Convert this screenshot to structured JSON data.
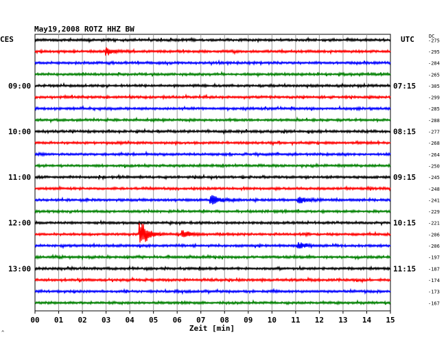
{
  "chart_data": {
    "type": "line",
    "title": "May19,2008   ROTZ HHZ BW",
    "left_label": "CES",
    "right_label": "UTC",
    "dc_label": "DC",
    "xlabel": "Zeit [min]",
    "x_ticks": [
      "00",
      "01",
      "02",
      "03",
      "04",
      "05",
      "06",
      "07",
      "08",
      "09",
      "10",
      "11",
      "12",
      "13",
      "14",
      "15"
    ],
    "x_range": [
      0,
      15
    ],
    "grid": true,
    "trace_colors": [
      "#000000",
      "#ff0000",
      "#0000ff",
      "#008000"
    ],
    "traces_per_hour": 4,
    "left_times": [
      {
        "label": "09:00",
        "row": 4
      },
      {
        "label": "10:00",
        "row": 8
      },
      {
        "label": "11:00",
        "row": 12
      },
      {
        "label": "12:00",
        "row": 16
      },
      {
        "label": "13:00",
        "row": 20
      }
    ],
    "right_times": [
      {
        "label": "07:15",
        "row": 4
      },
      {
        "label": "08:15",
        "row": 8
      },
      {
        "label": "09:15",
        "row": 12
      },
      {
        "label": "10:15",
        "row": 16
      },
      {
        "label": "11:15",
        "row": 20
      }
    ],
    "dc_offsets": [
      -275,
      -295,
      -284,
      -265,
      -305,
      -299,
      -285,
      -288,
      -277,
      -268,
      -264,
      -250,
      -245,
      -248,
      -241,
      -229,
      -221,
      -206,
      -206,
      -197,
      -187,
      -174,
      -173,
      -167
    ],
    "events": [
      {
        "row": 1,
        "minute": 3.0,
        "amplitude": 5
      },
      {
        "row": 14,
        "minute": 7.4,
        "amplitude": 9
      },
      {
        "row": 14,
        "minute": 11.1,
        "amplitude": 5
      },
      {
        "row": 17,
        "minute": 4.4,
        "amplitude": 22
      },
      {
        "row": 17,
        "minute": 6.2,
        "amplitude": 6
      },
      {
        "row": 18,
        "minute": 11.1,
        "amplitude": 4
      }
    ],
    "corner_mark": "^"
  }
}
